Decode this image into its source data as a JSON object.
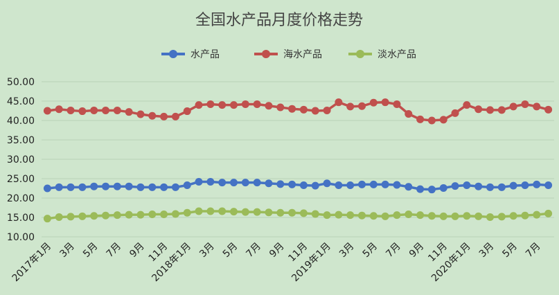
{
  "chart_data": {
    "type": "line",
    "title": "全国水产品月度价格走势",
    "xlabel": "",
    "ylabel": "",
    "ylim": [
      10,
      50
    ],
    "yticks": [
      "10.00",
      "15.00",
      "20.00",
      "25.00",
      "30.00",
      "35.00",
      "40.00",
      "45.00",
      "50.00"
    ],
    "x_tick_labels": [
      "2017年1月",
      "3月",
      "5月",
      "7月",
      "9月",
      "11月",
      "2018年1月",
      "3月",
      "5月",
      "7月",
      "9月",
      "11月",
      "2019年1月",
      "3月",
      "5月",
      "7月",
      "9月",
      "11月",
      "2020年1月",
      "3月",
      "5月",
      "7月"
    ],
    "grid": true,
    "legend_position": "top",
    "x": [
      "2017-01",
      "2017-02",
      "2017-03",
      "2017-04",
      "2017-05",
      "2017-06",
      "2017-07",
      "2017-08",
      "2017-09",
      "2017-10",
      "2017-11",
      "2017-12",
      "2018-01",
      "2018-02",
      "2018-03",
      "2018-04",
      "2018-05",
      "2018-06",
      "2018-07",
      "2018-08",
      "2018-09",
      "2018-10",
      "2018-11",
      "2018-12",
      "2019-01",
      "2019-02",
      "2019-03",
      "2019-04",
      "2019-05",
      "2019-06",
      "2019-07",
      "2019-08",
      "2019-09",
      "2019-10",
      "2019-11",
      "2019-12",
      "2020-01",
      "2020-02",
      "2020-03",
      "2020-04",
      "2020-05",
      "2020-06",
      "2020-07",
      "2020-08"
    ],
    "series": [
      {
        "name": "水产品",
        "color": "#4472c4",
        "values": [
          22.5,
          22.8,
          22.8,
          22.8,
          23.0,
          23.0,
          23.0,
          23.0,
          22.8,
          22.8,
          22.8,
          22.8,
          23.3,
          24.2,
          24.2,
          24.0,
          24.0,
          24.0,
          24.0,
          23.8,
          23.6,
          23.5,
          23.3,
          23.2,
          23.8,
          23.3,
          23.3,
          23.5,
          23.5,
          23.5,
          23.4,
          22.9,
          22.3,
          22.2,
          22.6,
          23.1,
          23.3,
          23.0,
          22.8,
          22.8,
          23.2,
          23.3,
          23.5,
          23.3
        ]
      },
      {
        "name": "海水产品",
        "color": "#c0504d",
        "values": [
          42.5,
          42.9,
          42.6,
          42.4,
          42.6,
          42.6,
          42.6,
          42.2,
          41.6,
          41.2,
          41.0,
          41.0,
          42.4,
          44.0,
          44.2,
          44.0,
          44.0,
          44.2,
          44.2,
          43.8,
          43.4,
          43.0,
          42.8,
          42.5,
          42.6,
          44.7,
          43.6,
          43.7,
          44.6,
          44.7,
          44.2,
          41.7,
          40.3,
          40.0,
          40.2,
          41.9,
          44.0,
          42.9,
          42.7,
          42.7,
          43.6,
          44.2,
          43.6,
          42.8
        ]
      },
      {
        "name": "淡水产品",
        "color": "#9bbb59",
        "values": [
          14.7,
          15.1,
          15.2,
          15.3,
          15.4,
          15.5,
          15.6,
          15.7,
          15.7,
          15.8,
          15.8,
          15.9,
          16.2,
          16.6,
          16.6,
          16.6,
          16.5,
          16.4,
          16.4,
          16.3,
          16.2,
          16.2,
          16.1,
          15.9,
          15.6,
          15.7,
          15.6,
          15.5,
          15.4,
          15.3,
          15.6,
          15.8,
          15.6,
          15.4,
          15.3,
          15.3,
          15.4,
          15.3,
          15.1,
          15.2,
          15.4,
          15.5,
          15.7,
          16.0
        ]
      }
    ]
  }
}
